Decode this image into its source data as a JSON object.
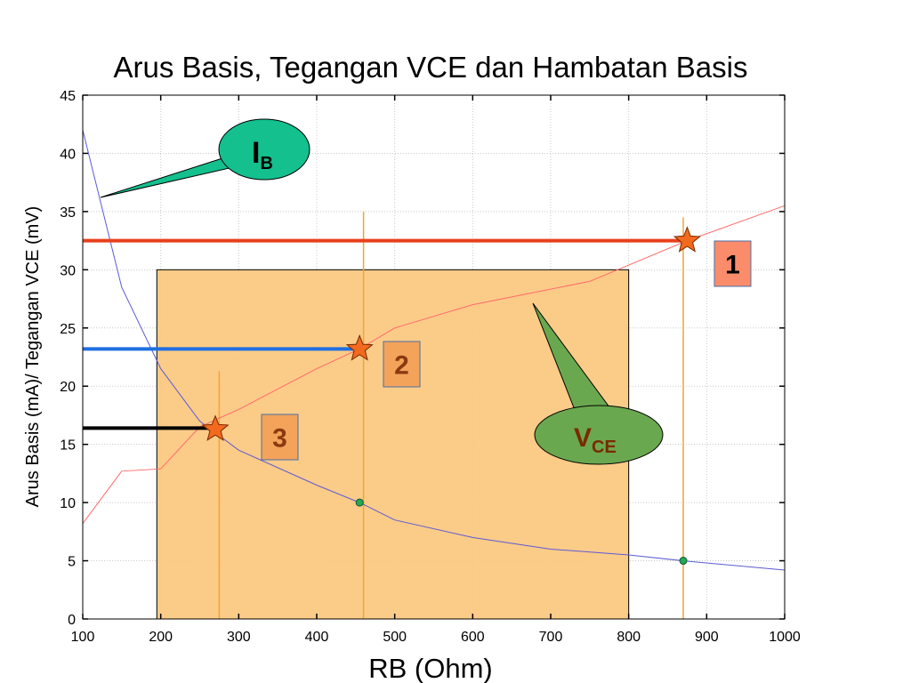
{
  "chart_data": {
    "type": "line",
    "title": "Arus Basis, Tegangan VCE dan Hambatan Basis",
    "xlabel": "RB (Ohm)",
    "ylabel": "Arus Basis (mA)/ Tegangan VCE (mV)",
    "xlim": [
      100,
      1000
    ],
    "ylim": [
      0,
      45
    ],
    "xticks": [
      100,
      200,
      300,
      400,
      500,
      600,
      700,
      800,
      900,
      1000
    ],
    "yticks": [
      0,
      5,
      10,
      15,
      20,
      25,
      30,
      35,
      40,
      45
    ],
    "grid": true,
    "series": [
      {
        "color": "#5b5bd6",
        "points": [
          [
            100,
            42
          ],
          [
            150,
            28.5
          ],
          [
            200,
            21.5
          ],
          [
            250,
            17
          ],
          [
            300,
            14.5
          ],
          [
            400,
            11.5
          ],
          [
            455,
            10
          ],
          [
            500,
            8.5
          ],
          [
            600,
            7
          ],
          [
            700,
            6
          ],
          [
            800,
            5.5
          ],
          [
            870,
            5
          ],
          [
            1000,
            4.2
          ]
        ]
      },
      {
        "color": "#ff6b6b",
        "points": [
          [
            100,
            8.2
          ],
          [
            150,
            12.7
          ],
          [
            200,
            12.9
          ],
          [
            250,
            16.5
          ],
          [
            300,
            18
          ],
          [
            400,
            21.5
          ],
          [
            455,
            23.2
          ],
          [
            500,
            25
          ],
          [
            600,
            27
          ],
          [
            750,
            29
          ],
          [
            875,
            32.5
          ],
          [
            1000,
            35.5
          ]
        ]
      }
    ],
    "markers": [
      {
        "label": "1",
        "x": 875,
        "y": 32.5
      },
      {
        "label": "2",
        "x": 455,
        "y": 23.2
      },
      {
        "label": "3",
        "x": 270,
        "y": 16.3
      }
    ],
    "dots": [
      {
        "x": 455,
        "y": 10
      },
      {
        "x": 870,
        "y": 5
      }
    ],
    "horizontal_lines": [
      {
        "y": 32.5,
        "x_end": 875,
        "color": "#e8401c"
      },
      {
        "y": 23.2,
        "x_end": 455,
        "color": "#1f6fe0"
      },
      {
        "y": 16.4,
        "x_end": 270,
        "color": "#000000"
      }
    ],
    "vertical_lines": [
      {
        "x": 275,
        "y_top": 21.3
      },
      {
        "x": 460,
        "y_top": 35
      },
      {
        "x": 870,
        "y_top": 34.5
      }
    ],
    "shaded_region": {
      "x": [
        195,
        800
      ],
      "y": [
        0,
        30
      ],
      "color": "#fbc77e"
    },
    "callouts": [
      {
        "main": "I",
        "sub": "B",
        "fill": "#13c08e",
        "text_color": "#000000"
      },
      {
        "main": "V",
        "sub": "CE",
        "fill": "#6aa84f",
        "text_color": "#7a2a00"
      }
    ],
    "label_boxes": [
      {
        "label": "1",
        "fill": "#fb8c6b",
        "text_color": "#000000"
      },
      {
        "label": "2",
        "fill": "#f4a35a",
        "text_color": "#8a3a10"
      },
      {
        "label": "3",
        "fill": "#f4a35a",
        "text_color": "#8a3a10"
      }
    ]
  }
}
